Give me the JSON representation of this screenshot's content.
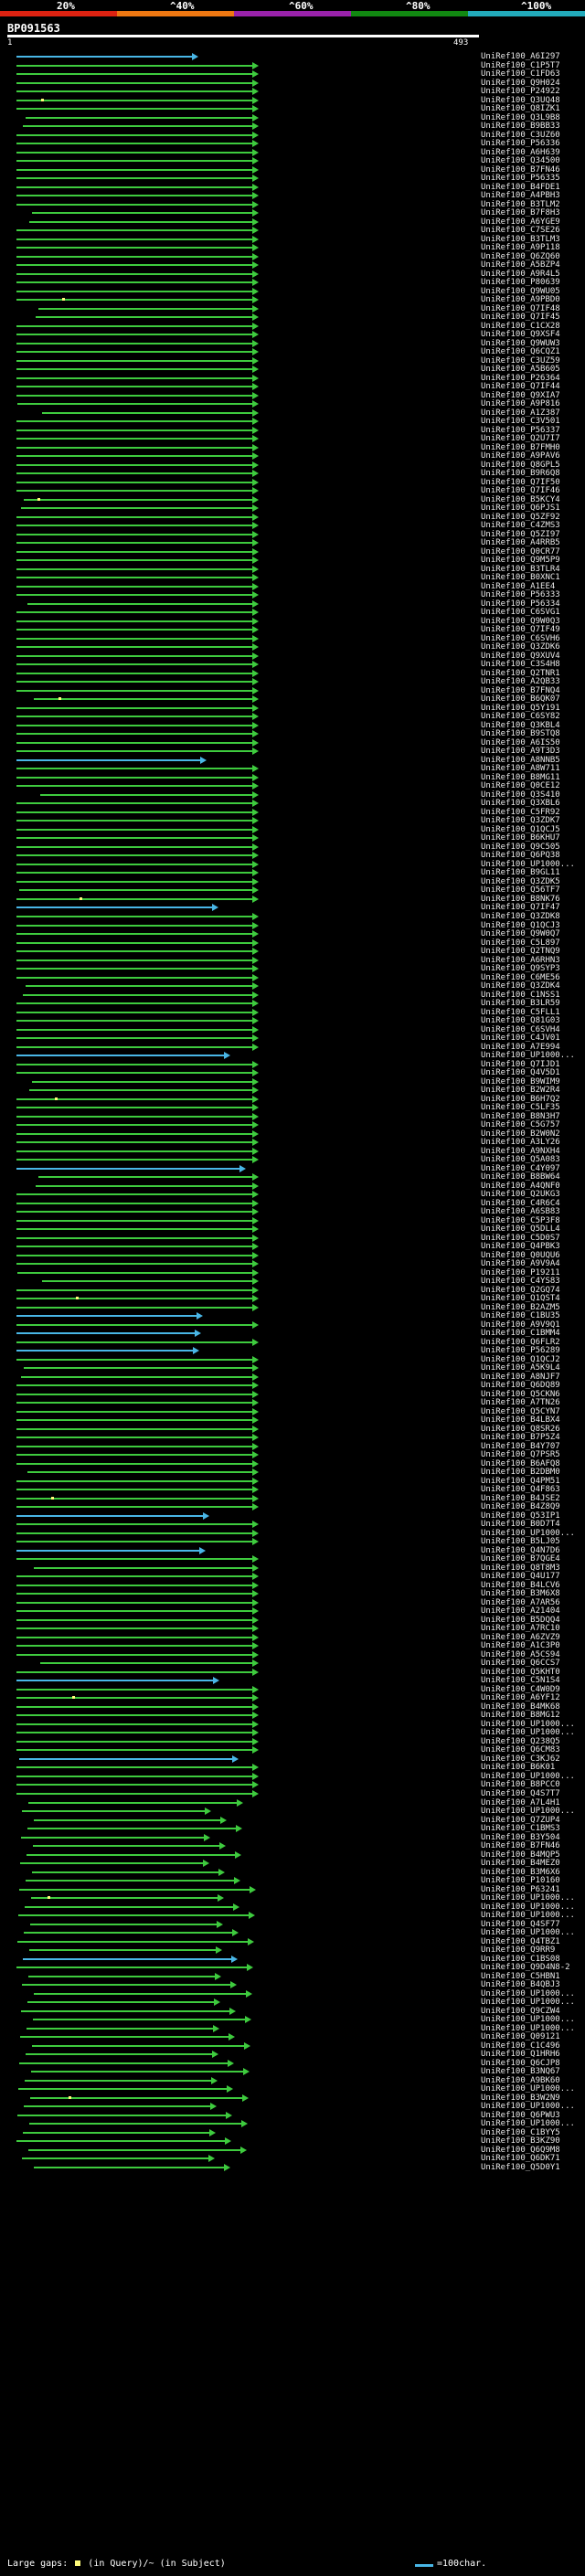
{
  "header": {
    "query_name": "BP091563",
    "coord_start": "1",
    "coord_end": "493",
    "scale_ticks": [
      "20%",
      "^40%",
      "^60%",
      "^80%",
      "^100%"
    ],
    "scale_colors": [
      "#dd2211",
      "#ee7711",
      "#9922aa",
      "#118811",
      "#22aabb"
    ]
  },
  "colors": {
    "green": "#3ecb3e",
    "blue": "#49b6e6",
    "gap": "#fffb7a",
    "text": "#e8e8e8"
  },
  "hits": [
    {
      "name": "UniRef100_A6I297",
      "color": "blue"
    },
    {
      "name": "UniRef100_C1P5T7",
      "color": "green"
    },
    {
      "name": "UniRef100_C1FD63",
      "color": "green"
    },
    {
      "name": "UniRef100_Q9H024",
      "color": "green"
    },
    {
      "name": "UniRef100_P24922",
      "color": "green"
    },
    {
      "name": "UniRef100_Q3UQ48",
      "color": "green"
    },
    {
      "name": "UniRef100_Q8IZK1",
      "color": "green"
    },
    {
      "name": "UniRef100_Q3L9B8",
      "color": "green"
    },
    {
      "name": "UniRef100_B9BB33",
      "color": "green"
    },
    {
      "name": "UniRef100_C3UZ60",
      "color": "green"
    },
    {
      "name": "UniRef100_P56336",
      "color": "green"
    },
    {
      "name": "UniRef100_A6H639",
      "color": "green"
    },
    {
      "name": "UniRef100_Q34500",
      "color": "green"
    },
    {
      "name": "UniRef100_B7FN46",
      "color": "green"
    },
    {
      "name": "UniRef100_P56335",
      "color": "green"
    },
    {
      "name": "UniRef100_B4FDE1",
      "color": "green"
    },
    {
      "name": "UniRef100_A4PBH3",
      "color": "green"
    },
    {
      "name": "UniRef100_B3TLM2",
      "color": "green"
    },
    {
      "name": "UniRef100_B7F8H3",
      "color": "green"
    },
    {
      "name": "UniRef100_A6YGE9",
      "color": "green"
    },
    {
      "name": "UniRef100_C7SE26",
      "color": "green"
    },
    {
      "name": "UniRef100_B3TLM3",
      "color": "green"
    },
    {
      "name": "UniRef100_A9P118",
      "color": "green"
    },
    {
      "name": "UniRef100_Q6ZQ60",
      "color": "green"
    },
    {
      "name": "UniRef100_A5BZP4",
      "color": "green"
    },
    {
      "name": "UniRef100_A9R4L5",
      "color": "green"
    },
    {
      "name": "UniRef100_P80639",
      "color": "green"
    },
    {
      "name": "UniRef100_Q9WU05",
      "color": "green"
    },
    {
      "name": "UniRef100_A9PBD0",
      "color": "green"
    },
    {
      "name": "UniRef100_Q7IF48",
      "color": "green"
    },
    {
      "name": "UniRef100_Q7IF45",
      "color": "green"
    },
    {
      "name": "UniRef100_C1CX28",
      "color": "green"
    },
    {
      "name": "UniRef100_Q9XSF4",
      "color": "green"
    },
    {
      "name": "UniRef100_Q9WUW3",
      "color": "green"
    },
    {
      "name": "UniRef100_Q6CQZ1",
      "color": "green"
    },
    {
      "name": "UniRef100_C3UZ59",
      "color": "green"
    },
    {
      "name": "UniRef100_A5B605",
      "color": "green"
    },
    {
      "name": "UniRef100_P26364",
      "color": "green"
    },
    {
      "name": "UniRef100_Q7IF44",
      "color": "green"
    },
    {
      "name": "UniRef100_Q9XIA7",
      "color": "green"
    },
    {
      "name": "UniRef100_A9P816",
      "color": "green"
    },
    {
      "name": "UniRef100_A1Z387",
      "color": "green"
    },
    {
      "name": "UniRef100_C3V501",
      "color": "green"
    },
    {
      "name": "UniRef100_P56337",
      "color": "green"
    },
    {
      "name": "UniRef100_Q2U7I7",
      "color": "green"
    },
    {
      "name": "UniRef100_B7FMH0",
      "color": "green"
    },
    {
      "name": "UniRef100_A9PAV6",
      "color": "green"
    },
    {
      "name": "UniRef100_Q8GPL5",
      "color": "green"
    },
    {
      "name": "UniRef100_B9R6Q8",
      "color": "green"
    },
    {
      "name": "UniRef100_Q7IF50",
      "color": "green"
    },
    {
      "name": "UniRef100_Q7IF46",
      "color": "green"
    },
    {
      "name": "UniRef100_B5KCY4",
      "color": "green"
    },
    {
      "name": "UniRef100_Q6PJS1",
      "color": "green"
    },
    {
      "name": "UniRef100_Q5ZF92",
      "color": "green"
    },
    {
      "name": "UniRef100_C4ZMS3",
      "color": "green"
    },
    {
      "name": "UniRef100_Q5ZI97",
      "color": "green"
    },
    {
      "name": "UniRef100_A4RRB5",
      "color": "green"
    },
    {
      "name": "UniRef100_Q0CR77",
      "color": "green"
    },
    {
      "name": "UniRef100_Q9M5P9",
      "color": "green"
    },
    {
      "name": "UniRef100_B3TLR4",
      "color": "green"
    },
    {
      "name": "UniRef100_B0XNC1",
      "color": "green"
    },
    {
      "name": "UniRef100_A1EE4",
      "color": "green"
    },
    {
      "name": "UniRef100_P56333",
      "color": "green"
    },
    {
      "name": "UniRef100_P56334",
      "color": "green"
    },
    {
      "name": "UniRef100_C6SVG1",
      "color": "green"
    },
    {
      "name": "UniRef100_Q9W0Q3",
      "color": "green"
    },
    {
      "name": "UniRef100_Q7IF49",
      "color": "green"
    },
    {
      "name": "UniRef100_C6SVH6",
      "color": "green"
    },
    {
      "name": "UniRef100_Q3ZDK6",
      "color": "green"
    },
    {
      "name": "UniRef100_Q9XUV4",
      "color": "green"
    },
    {
      "name": "UniRef100_C3S4H8",
      "color": "green"
    },
    {
      "name": "UniRef100_Q2TNR1",
      "color": "green"
    },
    {
      "name": "UniRef100_A2QB33",
      "color": "green"
    },
    {
      "name": "UniRef100_B7FNQ4",
      "color": "green"
    },
    {
      "name": "UniRef100_B6QK07",
      "color": "green"
    },
    {
      "name": "UniRef100_Q5Y191",
      "color": "green"
    },
    {
      "name": "UniRef100_C6SY82",
      "color": "green"
    },
    {
      "name": "UniRef100_Q3KBL4",
      "color": "green"
    },
    {
      "name": "UniRef100_B9STQ8",
      "color": "green"
    },
    {
      "name": "UniRef100_A6IS50",
      "color": "green"
    },
    {
      "name": "UniRef100_A9T3D3",
      "color": "green"
    },
    {
      "name": "UniRef100_A8NNB5",
      "color": "blue"
    },
    {
      "name": "UniRef100_A8W711",
      "color": "green"
    },
    {
      "name": "UniRef100_B8MG11",
      "color": "green"
    },
    {
      "name": "UniRef100_Q0CE12",
      "color": "green"
    },
    {
      "name": "UniRef100_Q3S410",
      "color": "green"
    },
    {
      "name": "UniRef100_Q3XBL6",
      "color": "green"
    },
    {
      "name": "UniRef100_C5FR92",
      "color": "green"
    },
    {
      "name": "UniRef100_Q3ZDK7",
      "color": "green"
    },
    {
      "name": "UniRef100_Q1QCJ5",
      "color": "green"
    },
    {
      "name": "UniRef100_B6KHU7",
      "color": "green"
    },
    {
      "name": "UniRef100_Q9C505",
      "color": "green"
    },
    {
      "name": "UniRef100_Q6PQ38",
      "color": "green"
    },
    {
      "name": "UniRef100_UP1000...",
      "color": "green"
    },
    {
      "name": "UniRef100_B9GL11",
      "color": "green"
    },
    {
      "name": "UniRef100_Q3ZDK5",
      "color": "green"
    },
    {
      "name": "UniRef100_Q56TF7",
      "color": "green"
    },
    {
      "name": "UniRef100_B8NK76",
      "color": "green"
    },
    {
      "name": "UniRef100_Q7IF47",
      "color": "blue"
    },
    {
      "name": "UniRef100_Q3ZDK8",
      "color": "green"
    },
    {
      "name": "UniRef100_Q1QCJ3",
      "color": "green"
    },
    {
      "name": "UniRef100_Q9W0Q7",
      "color": "green"
    },
    {
      "name": "UniRef100_C5L897",
      "color": "green"
    },
    {
      "name": "UniRef100_Q2TNQ9",
      "color": "green"
    },
    {
      "name": "UniRef100_A6RHN3",
      "color": "green"
    },
    {
      "name": "UniRef100_Q9SYP3",
      "color": "green"
    },
    {
      "name": "UniRef100_C6ME56",
      "color": "green"
    },
    {
      "name": "UniRef100_Q3ZDK4",
      "color": "green"
    },
    {
      "name": "UniRef100_C1NSS1",
      "color": "green"
    },
    {
      "name": "UniRef100_B3LR59",
      "color": "green"
    },
    {
      "name": "UniRef100_C5FLL1",
      "color": "green"
    },
    {
      "name": "UniRef100_Q81G03",
      "color": "green"
    },
    {
      "name": "UniRef100_C6SVH4",
      "color": "green"
    },
    {
      "name": "UniRef100_C4JV01",
      "color": "green"
    },
    {
      "name": "UniRef100_A7E994",
      "color": "green"
    },
    {
      "name": "UniRef100_UP1000...",
      "color": "blue"
    },
    {
      "name": "UniRef100_Q7IJD1",
      "color": "green"
    },
    {
      "name": "UniRef100_Q4V5D1",
      "color": "green"
    },
    {
      "name": "UniRef100_B9WIM9",
      "color": "green"
    },
    {
      "name": "UniRef100_B2W2R4",
      "color": "green"
    },
    {
      "name": "UniRef100_B6H7Q2",
      "color": "green"
    },
    {
      "name": "UniRef100_C5LF35",
      "color": "green"
    },
    {
      "name": "UniRef100_B8N3H7",
      "color": "green"
    },
    {
      "name": "UniRef100_C5G757",
      "color": "green"
    },
    {
      "name": "UniRef100_B2W0N2",
      "color": "green"
    },
    {
      "name": "UniRef100_A3LY26",
      "color": "green"
    },
    {
      "name": "UniRef100_A9NXH4",
      "color": "green"
    },
    {
      "name": "UniRef100_Q5A083",
      "color": "green"
    },
    {
      "name": "UniRef100_C4Y097",
      "color": "blue"
    },
    {
      "name": "UniRef100_B8BW64",
      "color": "green"
    },
    {
      "name": "UniRef100_A4QNF0",
      "color": "green"
    },
    {
      "name": "UniRef100_Q2UKG3",
      "color": "green"
    },
    {
      "name": "UniRef100_C4R6C4",
      "color": "green"
    },
    {
      "name": "UniRef100_A6SB83",
      "color": "green"
    },
    {
      "name": "UniRef100_C5P3F8",
      "color": "green"
    },
    {
      "name": "UniRef100_Q5DLL4",
      "color": "green"
    },
    {
      "name": "UniRef100_C5D0S7",
      "color": "green"
    },
    {
      "name": "UniRef100_Q4PBK3",
      "color": "green"
    },
    {
      "name": "UniRef100_Q0UQU6",
      "color": "green"
    },
    {
      "name": "UniRef100_A9V9A4",
      "color": "green"
    },
    {
      "name": "UniRef100_P19211",
      "color": "green"
    },
    {
      "name": "UniRef100_C4YS83",
      "color": "green"
    },
    {
      "name": "UniRef100_Q2GQ74",
      "color": "green"
    },
    {
      "name": "UniRef100_Q1QST4",
      "color": "green"
    },
    {
      "name": "UniRef100_B2AZM5",
      "color": "green"
    },
    {
      "name": "UniRef100_C1BU35",
      "color": "blue"
    },
    {
      "name": "UniRef100_A9V9Q1",
      "color": "green"
    },
    {
      "name": "UniRef100_C1BMM4",
      "color": "blue"
    },
    {
      "name": "UniRef100_Q6FLR2",
      "color": "green"
    },
    {
      "name": "UniRef100_P56289",
      "color": "blue"
    },
    {
      "name": "UniRef100_Q1QCJ2",
      "color": "green"
    },
    {
      "name": "UniRef100_A5K9L4",
      "color": "green"
    },
    {
      "name": "UniRef100_A8NJF7",
      "color": "green"
    },
    {
      "name": "UniRef100_Q6DQ89",
      "color": "green"
    },
    {
      "name": "UniRef100_Q5CKN6",
      "color": "green"
    },
    {
      "name": "UniRef100_A7TN26",
      "color": "green"
    },
    {
      "name": "UniRef100_Q5CYN7",
      "color": "green"
    },
    {
      "name": "UniRef100_B4LBX4",
      "color": "green"
    },
    {
      "name": "UniRef100_Q8SR26",
      "color": "green"
    },
    {
      "name": "UniRef100_B7P5Z4",
      "color": "green"
    },
    {
      "name": "UniRef100_B4Y707",
      "color": "green"
    },
    {
      "name": "UniRef100_Q7PSR5",
      "color": "green"
    },
    {
      "name": "UniRef100_B6AFQ8",
      "color": "green"
    },
    {
      "name": "UniRef100_B2DBM0",
      "color": "green"
    },
    {
      "name": "UniRef100_Q4PM51",
      "color": "green"
    },
    {
      "name": "UniRef100_Q4F863",
      "color": "green"
    },
    {
      "name": "UniRef100_B4JSE2",
      "color": "green"
    },
    {
      "name": "UniRef100_B4Z8Q9",
      "color": "green"
    },
    {
      "name": "UniRef100_Q53IP1",
      "color": "blue"
    },
    {
      "name": "UniRef100_B0D7T4",
      "color": "green"
    },
    {
      "name": "UniRef100_UP1000...",
      "color": "green"
    },
    {
      "name": "UniRef100_B5LJ05",
      "color": "green"
    },
    {
      "name": "UniRef100_Q4N7D6",
      "color": "blue"
    },
    {
      "name": "UniRef100_B7QGE4",
      "color": "green"
    },
    {
      "name": "UniRef100_Q8T8M3",
      "color": "green"
    },
    {
      "name": "UniRef100_Q4U177",
      "color": "green"
    },
    {
      "name": "UniRef100_B4LCV6",
      "color": "green"
    },
    {
      "name": "UniRef100_B3M6X8",
      "color": "green"
    },
    {
      "name": "UniRef100_A7AR56",
      "color": "green"
    },
    {
      "name": "UniRef100_A21404",
      "color": "green"
    },
    {
      "name": "UniRef100_B5DQQ4",
      "color": "green"
    },
    {
      "name": "UniRef100_A7RC10",
      "color": "green"
    },
    {
      "name": "UniRef100_A6ZVZ9",
      "color": "green"
    },
    {
      "name": "UniRef100_A1C3P0",
      "color": "green"
    },
    {
      "name": "UniRef100_A5CS94",
      "color": "green"
    },
    {
      "name": "UniRef100_Q6CCS7",
      "color": "green"
    },
    {
      "name": "UniRef100_Q5KHT0",
      "color": "green"
    },
    {
      "name": "UniRef100_C5N1S4",
      "color": "blue"
    },
    {
      "name": "UniRef100_C4W0D9",
      "color": "green"
    },
    {
      "name": "UniRef100_A6YF12",
      "color": "green"
    },
    {
      "name": "UniRef100_B4MK68",
      "color": "green"
    },
    {
      "name": "UniRef100_B8MG12",
      "color": "green"
    },
    {
      "name": "UniRef100_UP1000...",
      "color": "green"
    },
    {
      "name": "UniRef100_UP1000...",
      "color": "green"
    },
    {
      "name": "UniRef100_Q238Q5",
      "color": "green"
    },
    {
      "name": "UniRef100_Q6CM83",
      "color": "green"
    },
    {
      "name": "UniRef100_C3KJ62",
      "color": "blue"
    },
    {
      "name": "UniRef100_B6K01",
      "color": "green"
    },
    {
      "name": "UniRef100_UP1000...",
      "color": "green"
    },
    {
      "name": "UniRef100_B8PCC0",
      "color": "green"
    },
    {
      "name": "UniRef100_Q4S7T7",
      "color": "green"
    },
    {
      "name": "UniRef100_A7L4H1",
      "color": "green"
    },
    {
      "name": "UniRef100_UP1000...",
      "color": "green"
    },
    {
      "name": "UniRef100_Q7ZUP4",
      "color": "green"
    },
    {
      "name": "UniRef100_C1BMS3",
      "color": "green"
    },
    {
      "name": "UniRef100_B3Y504",
      "color": "green"
    },
    {
      "name": "UniRef100_B7FN46",
      "color": "green"
    },
    {
      "name": "UniRef100_B4MQP5",
      "color": "green"
    },
    {
      "name": "UniRef100_B4MEZ0",
      "color": "green"
    },
    {
      "name": "UniRef100_B3M6X6",
      "color": "green"
    },
    {
      "name": "UniRef100_P10160",
      "color": "green"
    },
    {
      "name": "UniRef100_P63241",
      "color": "green"
    },
    {
      "name": "UniRef100_UP1000...",
      "color": "green"
    },
    {
      "name": "UniRef100_UP1000...",
      "color": "green"
    },
    {
      "name": "UniRef100_UP1000...",
      "color": "green"
    },
    {
      "name": "UniRef100_Q4SF77",
      "color": "green"
    },
    {
      "name": "UniRef100_UP1000...",
      "color": "green"
    },
    {
      "name": "UniRef100_Q4TBZ1",
      "color": "green"
    },
    {
      "name": "UniRef100_Q9RR9",
      "color": "green"
    },
    {
      "name": "UniRef100_C1BS08",
      "color": "blue"
    },
    {
      "name": "UniRef100_Q9D4N8-2",
      "color": "green"
    },
    {
      "name": "UniRef100_C5HBN1",
      "color": "green"
    },
    {
      "name": "UniRef100_B4QBJ3",
      "color": "green"
    },
    {
      "name": "UniRef100_UP1000...",
      "color": "green"
    },
    {
      "name": "UniRef100_UP1000...",
      "color": "green"
    },
    {
      "name": "UniRef100_Q9CZW4",
      "color": "green"
    },
    {
      "name": "UniRef100_UP1000...",
      "color": "green"
    },
    {
      "name": "UniRef100_UP1000...",
      "color": "green"
    },
    {
      "name": "UniRef100_Q09121",
      "color": "green"
    },
    {
      "name": "UniRef100_C1C496",
      "color": "green"
    },
    {
      "name": "UniRef100_Q1HRH6",
      "color": "green"
    },
    {
      "name": "UniRef100_Q6CJP8",
      "color": "green"
    },
    {
      "name": "UniRef100_B3NQ67",
      "color": "green"
    },
    {
      "name": "UniRef100_A9BK60",
      "color": "green"
    },
    {
      "name": "UniRef100_UP1000...",
      "color": "green"
    },
    {
      "name": "UniRef100_B3W2N9",
      "color": "green"
    },
    {
      "name": "UniRef100_UP1000...",
      "color": "green"
    },
    {
      "name": "UniRef100_Q6PWU3",
      "color": "green"
    },
    {
      "name": "UniRef100_UP1000...",
      "color": "green"
    },
    {
      "name": "UniRef100_C1BYY5",
      "color": "green"
    },
    {
      "name": "UniRef100_B3KZ90",
      "color": "green"
    },
    {
      "name": "UniRef100_Q6Q9M8",
      "color": "green"
    },
    {
      "name": "UniRef100_Q6DK71",
      "color": "green"
    },
    {
      "name": "UniRef100_Q5D0Y1",
      "color": "green"
    }
  ],
  "legend": {
    "large_gaps": "Large gaps:",
    "in_query": "(in Query)/~ (in Subject)",
    "scale_label": "=100char."
  }
}
